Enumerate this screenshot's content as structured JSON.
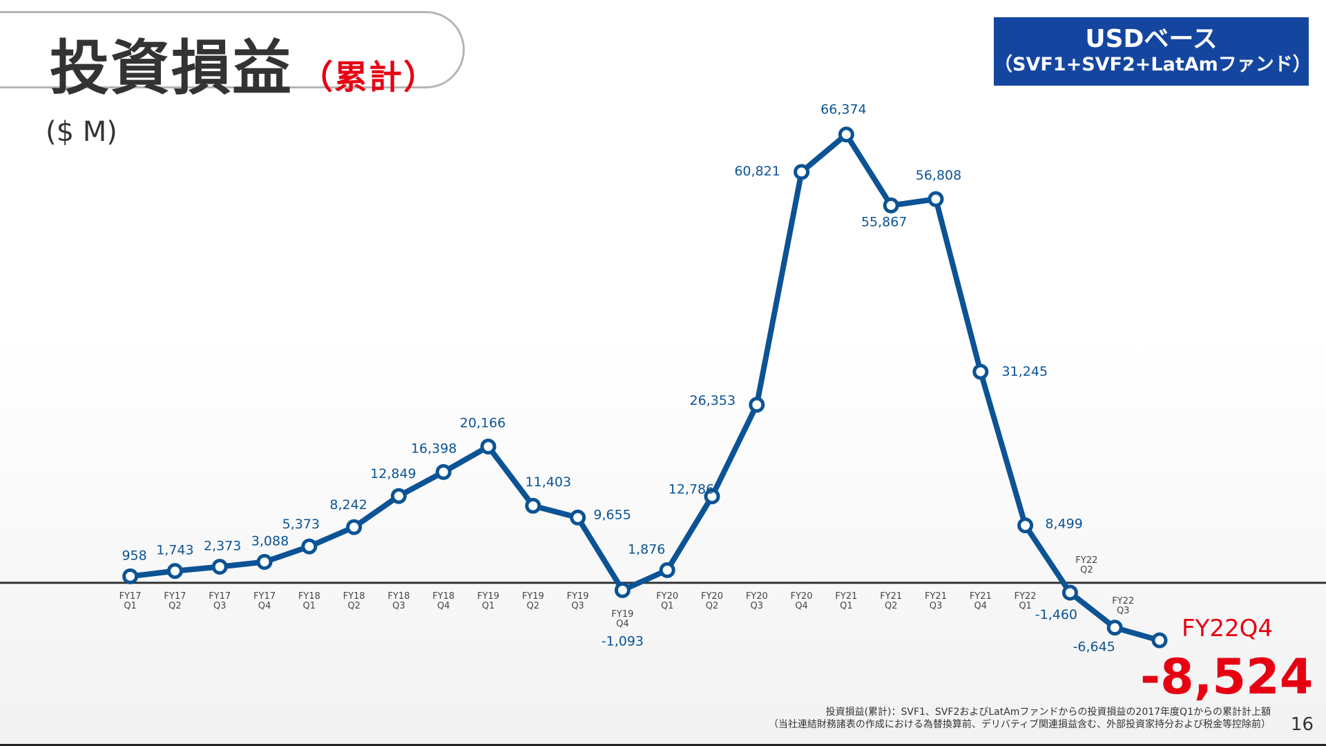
{
  "header": {
    "title": "投資損益",
    "subtitle": "（累計）",
    "unit": "($ M)"
  },
  "badge": {
    "line1": "USDベース",
    "line2": "（SVF1+SVF2+LatAmファンド）"
  },
  "footnote": {
    "line1": "投資損益(累計)：SVF1、SVF2およびLatAmファンドからの投資損益の2017年度Q1からの累計計上額",
    "line2": "（当社連結財務諸表の作成における為替換算前、デリバティブ関連損益含む、外部投資家持分および税金等控除前）"
  },
  "page_number": "16",
  "colors": {
    "line": "#0b5394",
    "highlight": "#e60012",
    "badge": "#1446a0"
  },
  "chart_data": {
    "type": "line",
    "title": "投資損益（累計）",
    "ylabel": "$ M",
    "categories": [
      [
        "FY17",
        "Q1"
      ],
      [
        "FY17",
        "Q2"
      ],
      [
        "FY17",
        "Q3"
      ],
      [
        "FY17",
        "Q4"
      ],
      [
        "FY18",
        "Q1"
      ],
      [
        "FY18",
        "Q2"
      ],
      [
        "FY18",
        "Q3"
      ],
      [
        "FY18",
        "Q4"
      ],
      [
        "FY19",
        "Q1"
      ],
      [
        "FY19",
        "Q2"
      ],
      [
        "FY19",
        "Q3"
      ],
      [
        "FY19",
        "Q4"
      ],
      [
        "FY20",
        "Q1"
      ],
      [
        "FY20",
        "Q2"
      ],
      [
        "FY20",
        "Q3"
      ],
      [
        "FY20",
        "Q4"
      ],
      [
        "FY21",
        "Q1"
      ],
      [
        "FY21",
        "Q2"
      ],
      [
        "FY21",
        "Q3"
      ],
      [
        "FY21",
        "Q4"
      ],
      [
        "FY22",
        "Q1"
      ],
      [
        "FY22",
        "Q2"
      ],
      [
        "FY22",
        "Q3"
      ],
      [
        "FY22",
        "Q4"
      ]
    ],
    "values": [
      958,
      1743,
      2373,
      3088,
      5373,
      8242,
      12849,
      16398,
      20166,
      11403,
      9655,
      -1093,
      1876,
      12786,
      26353,
      60821,
      66374,
      55867,
      56808,
      31245,
      8499,
      -1460,
      -6645,
      -8524
    ],
    "labels": [
      "958",
      "1,743",
      "2,373",
      "3,088",
      "5,373",
      "8,242",
      "12,849",
      "16,398",
      "20,166",
      "11,403",
      "9,655",
      "-1,093",
      "1,876",
      "12,786",
      "26,353",
      "60,821",
      "66,374",
      "55,867",
      "56,808",
      "31,245",
      "8,499",
      "-1,460",
      "-6,645",
      "-8,524"
    ],
    "highlight": {
      "category": "FY22Q4",
      "value_label": "-8,524"
    },
    "grid": false,
    "zero_line": true
  }
}
